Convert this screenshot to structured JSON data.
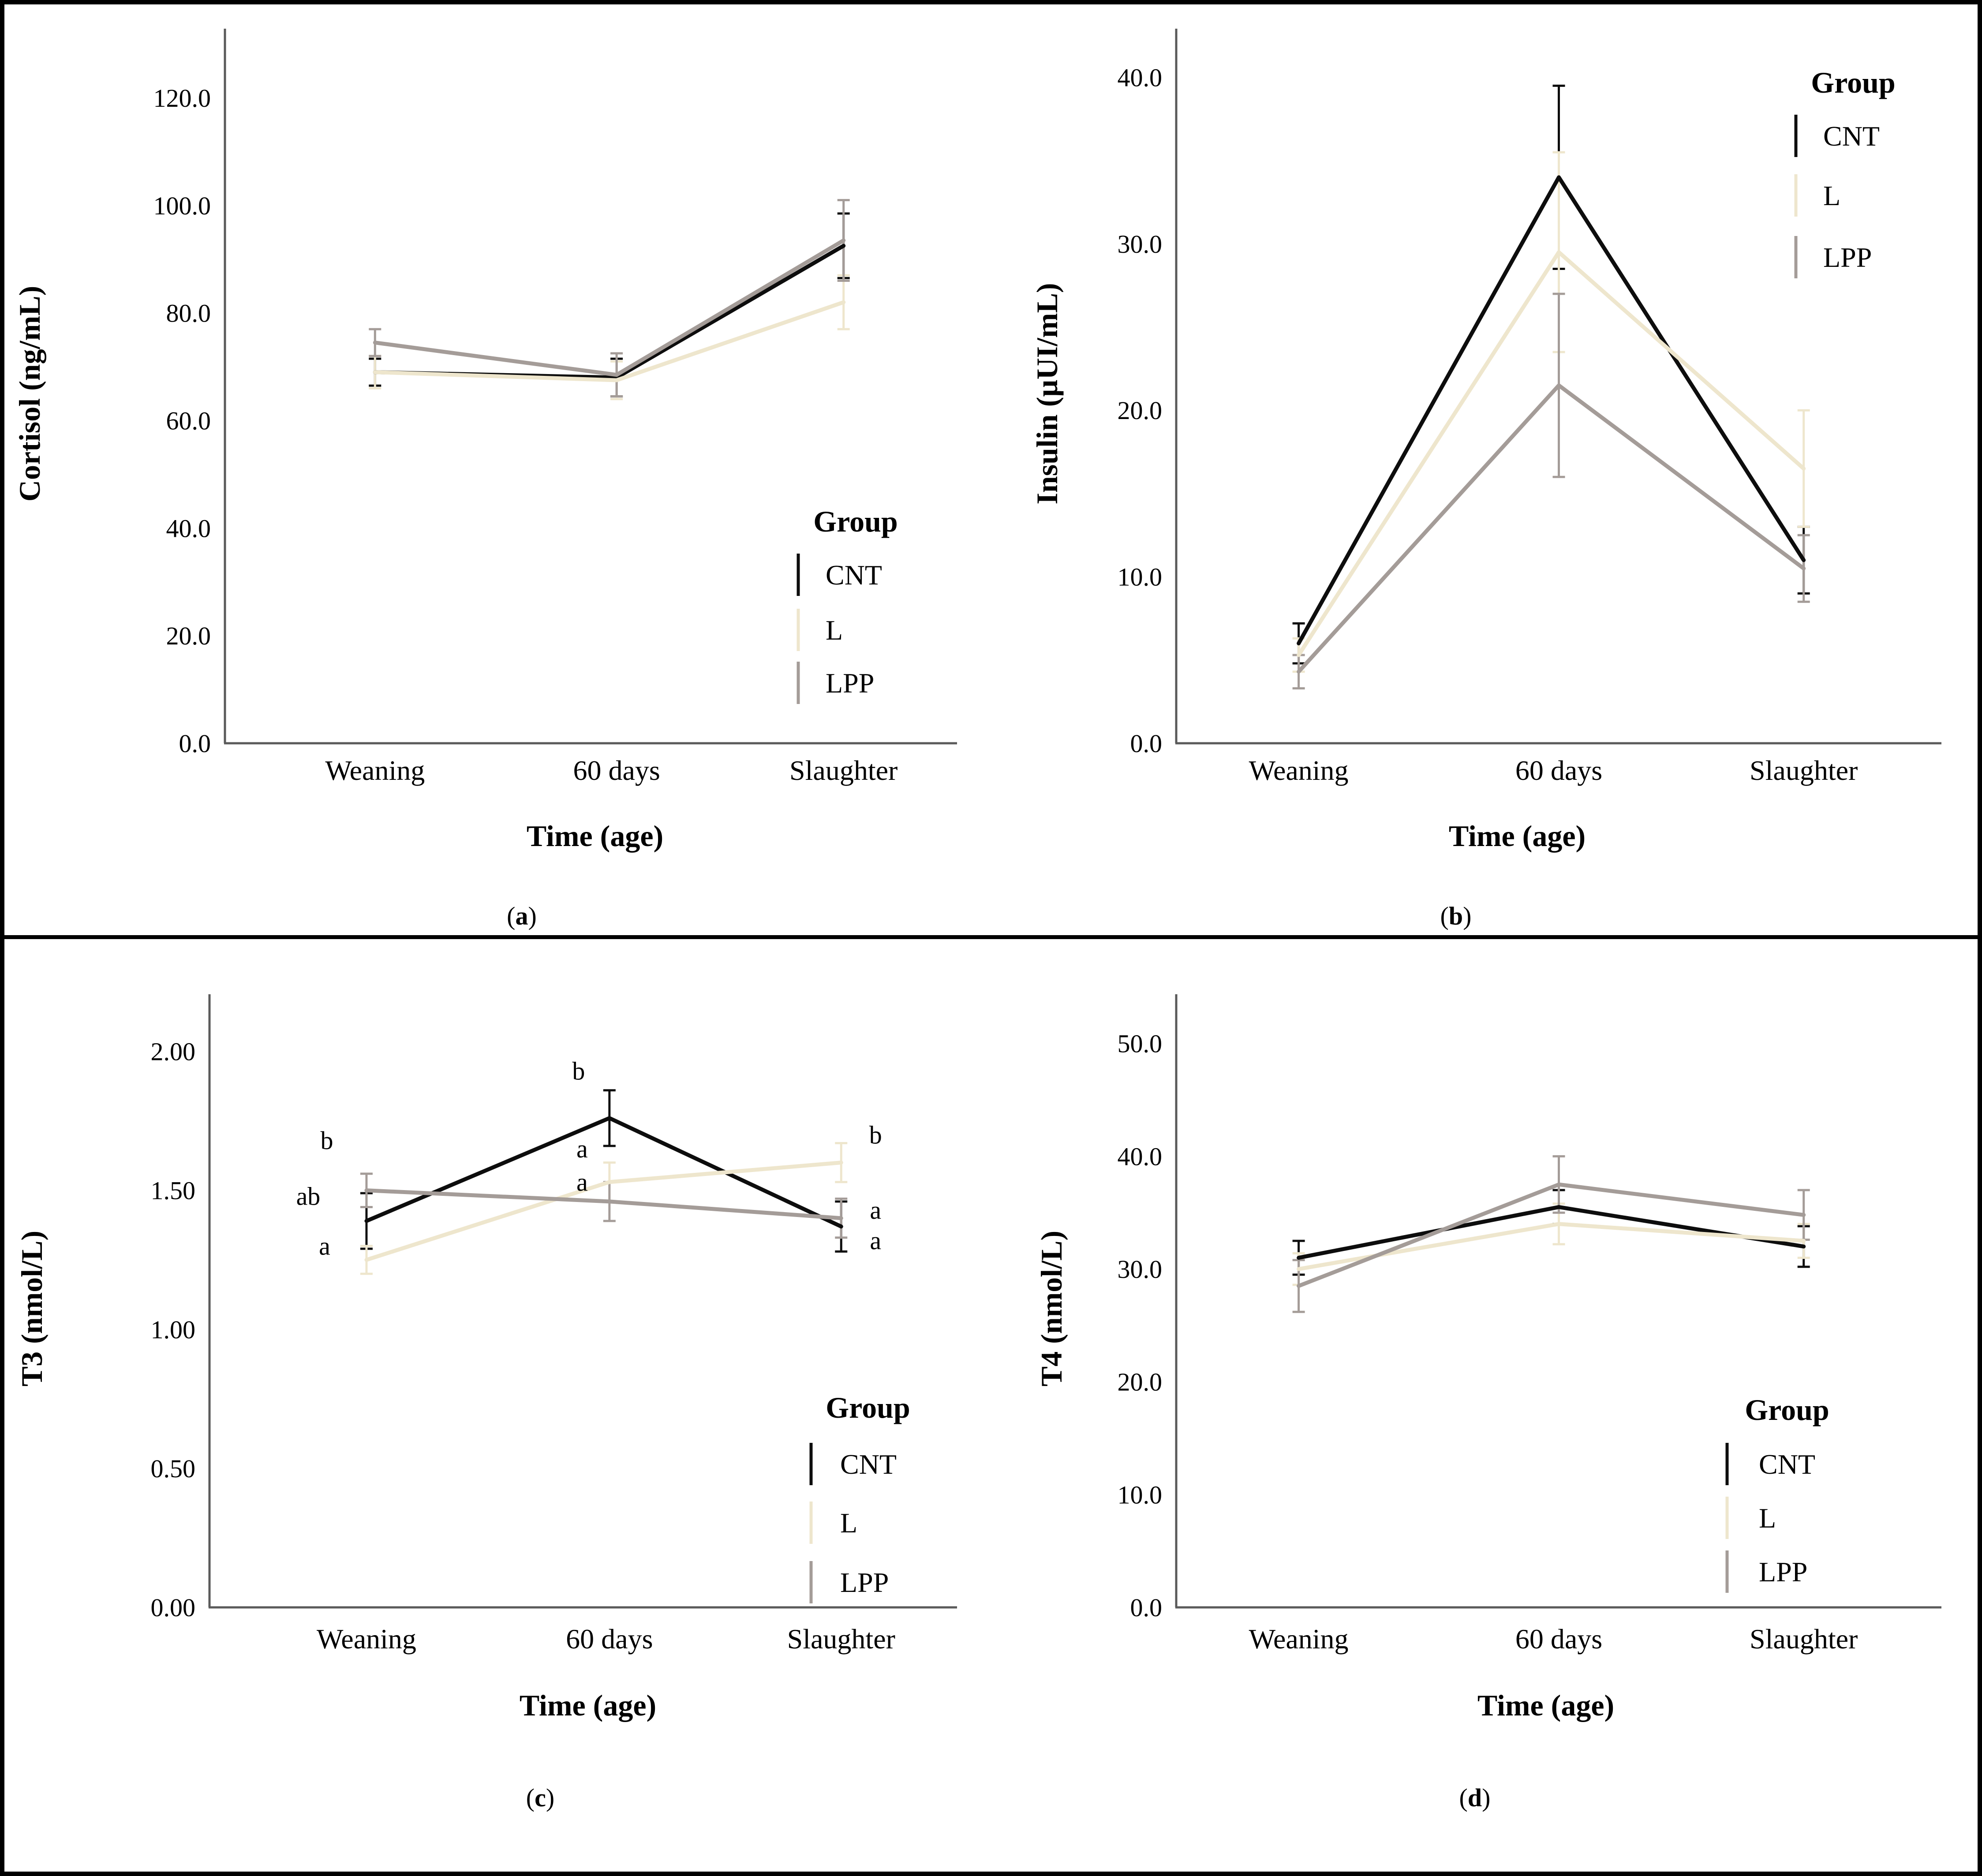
{
  "figure": {
    "background": "#ffffff",
    "border_color": "#000000",
    "divider_color": "#000000",
    "axis_color": "#5a5a5a",
    "text_color": "#000000",
    "group_colors": {
      "CNT": "#0d0d0d",
      "L": "#eee6cd",
      "LPP": "#a49c98"
    }
  },
  "chart_data": [
    {
      "id": "a",
      "type": "line",
      "caption": "a",
      "title": "",
      "xlabel": "Time (age)",
      "ylabel": "Cortisol (ng/mL)",
      "categories": [
        "Weaning",
        "60 days",
        "Slaughter"
      ],
      "ylim": [
        0,
        130
      ],
      "yticks": [
        0,
        20,
        40,
        60,
        80,
        100,
        120
      ],
      "ytick_decimals": 1,
      "grid": false,
      "legend": {
        "title": "Group",
        "entries": [
          "CNT",
          "L",
          "LPP"
        ],
        "position": "bottom-right"
      },
      "series": [
        {
          "name": "CNT",
          "color": "#0d0d0d",
          "values": [
            69,
            68,
            92.5
          ],
          "errors": [
            2.5,
            3.5,
            6
          ]
        },
        {
          "name": "L",
          "color": "#eee6cd",
          "values": [
            69,
            67.5,
            82
          ],
          "errors": [
            3,
            3.5,
            5
          ]
        },
        {
          "name": "LPP",
          "color": "#a49c98",
          "values": [
            74.5,
            68.5,
            93.5
          ],
          "errors": [
            2.5,
            4,
            7.5
          ]
        }
      ],
      "annotations": []
    },
    {
      "id": "b",
      "type": "line",
      "caption": "b",
      "title": "",
      "xlabel": "Time (age)",
      "ylabel": "Insulin (µUI/mL)",
      "categories": [
        "Weaning",
        "60 days",
        "Slaughter"
      ],
      "ylim": [
        0,
        42
      ],
      "yticks": [
        0,
        10,
        20,
        30,
        40
      ],
      "ytick_decimals": 1,
      "grid": false,
      "legend": {
        "title": "Group",
        "entries": [
          "CNT",
          "L",
          "LPP"
        ],
        "position": "top-right"
      },
      "series": [
        {
          "name": "CNT",
          "color": "#0d0d0d",
          "values": [
            6,
            34,
            11
          ],
          "errors": [
            1.2,
            5.5,
            2
          ]
        },
        {
          "name": "L",
          "color": "#eee6cd",
          "values": [
            5.3,
            29.5,
            16.5
          ],
          "errors": [
            1,
            6,
            3.5
          ]
        },
        {
          "name": "LPP",
          "color": "#a49c98",
          "values": [
            4.3,
            21.5,
            10.5
          ],
          "errors": [
            1,
            5.5,
            2
          ]
        }
      ],
      "annotations": []
    },
    {
      "id": "c",
      "type": "line",
      "caption": "c",
      "title": "",
      "xlabel": "Time (age)",
      "ylabel": "T3 (nmol/L)",
      "categories": [
        "Weaning",
        "60 days",
        "Slaughter"
      ],
      "ylim": [
        0,
        2.15
      ],
      "yticks": [
        0,
        0.5,
        1,
        1.5,
        2
      ],
      "ytick_decimals": 2,
      "grid": false,
      "legend": {
        "title": "Group",
        "entries": [
          "CNT",
          "L",
          "LPP"
        ],
        "position": "bottom-right"
      },
      "series": [
        {
          "name": "CNT",
          "color": "#0d0d0d",
          "values": [
            1.39,
            1.76,
            1.37
          ],
          "errors": [
            0.1,
            0.1,
            0.09
          ]
        },
        {
          "name": "L",
          "color": "#eee6cd",
          "values": [
            1.25,
            1.53,
            1.6
          ],
          "errors": [
            0.05,
            0.07,
            0.07
          ]
        },
        {
          "name": "LPP",
          "color": "#a49c98",
          "values": [
            1.5,
            1.46,
            1.4
          ],
          "errors": [
            0.06,
            0.07,
            0.07
          ]
        }
      ],
      "annotations": [
        {
          "text": "b",
          "cat": 0,
          "value": 1.68,
          "dx": -90
        },
        {
          "text": "ab",
          "cat": 0,
          "value": 1.48,
          "dx": -132
        },
        {
          "text": "a",
          "cat": 0,
          "value": 1.3,
          "dx": -95
        },
        {
          "text": "b",
          "cat": 1,
          "value": 1.93,
          "dx": -70
        },
        {
          "text": "a",
          "cat": 1,
          "value": 1.65,
          "dx": -62
        },
        {
          "text": "a",
          "cat": 1,
          "value": 1.53,
          "dx": -62
        },
        {
          "text": "b",
          "cat": 2,
          "value": 1.7,
          "dx": 78
        },
        {
          "text": "a",
          "cat": 2,
          "value": 1.43,
          "dx": 78
        },
        {
          "text": "a",
          "cat": 2,
          "value": 1.32,
          "dx": 78
        }
      ]
    },
    {
      "id": "d",
      "type": "line",
      "caption": "d",
      "title": "",
      "xlabel": "Time (age)",
      "ylabel": "T4 (nmol/L)",
      "categories": [
        "Weaning",
        "60 days",
        "Slaughter"
      ],
      "ylim": [
        0,
        53
      ],
      "yticks": [
        0,
        10,
        20,
        30,
        40,
        50
      ],
      "ytick_decimals": 1,
      "grid": false,
      "legend": {
        "title": "Group",
        "entries": [
          "CNT",
          "L",
          "LPP"
        ],
        "position": "bottom-right"
      },
      "series": [
        {
          "name": "CNT",
          "color": "#0d0d0d",
          "values": [
            31,
            35.5,
            32
          ],
          "errors": [
            1.5,
            1.5,
            1.8
          ]
        },
        {
          "name": "L",
          "color": "#eee6cd",
          "values": [
            30,
            34,
            32.5
          ],
          "errors": [
            1.4,
            1.8,
            1.5
          ]
        },
        {
          "name": "LPP",
          "color": "#a49c98",
          "values": [
            28.5,
            37.5,
            34.8
          ],
          "errors": [
            2.3,
            2.5,
            2.2
          ]
        }
      ],
      "annotations": []
    }
  ]
}
